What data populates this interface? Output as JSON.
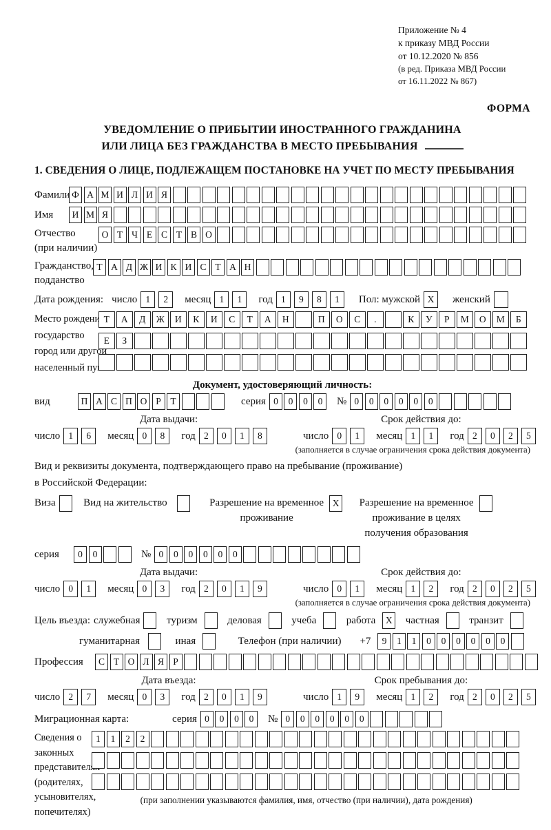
{
  "page": {
    "appendix_line1": "Приложение № 4",
    "appendix_line2": "к приказу МВД России",
    "appendix_line3": "от 10.12.2020 № 856",
    "appendix_line4": "(в ред. Приказа МВД России",
    "appendix_line5": "от 16.11.2022 № 867)",
    "form_word": "ФОРМА",
    "title_line1": "УВЕДОМЛЕНИЕ О ПРИБЫТИИ ИНОСТРАННОГО ГРАЖДАНИНА",
    "title_line2": "ИЛИ ЛИЦА БЕЗ ГРАЖДАНСТВА В МЕСТО ПРЕБЫВАНИЯ",
    "section1_title": "1. СВЕДЕНИЯ О ЛИЦЕ, ПОДЛЕЖАЩЕМ ПОСТАНОВКЕ НА УЧЕТ ПО МЕСТУ ПРЕБЫВАНИЯ"
  },
  "labels": {
    "surname": "Фамилия",
    "firstname": "Имя",
    "patronymic1": "Отчество",
    "patronymic2": "(при наличии)",
    "citizenship1": "Гражданство,",
    "citizenship2": "подданство",
    "birthdate": "Дата рождения:",
    "day": "число",
    "month": "месяц",
    "year": "год",
    "sex_male": "Пол: мужской",
    "sex_female": "женский",
    "birthplace1": "Место рождения:",
    "birthplace2": "государство",
    "birthplace3": "город или другой",
    "birthplace4": "населенный пункт",
    "id_doc_header": "Документ, удостоверяющий личность:",
    "kind": "вид",
    "series": "серия",
    "number": "№",
    "issue_date": "Дата выдачи:",
    "valid_until": "Срок действия до:",
    "valid_note": "(заполняется в случае ограничения срока действия документа)",
    "right_doc1": "Вид и реквизиты документа, подтверждающего право на пребывание (проживание)",
    "right_doc2": "в Российской Федерации:",
    "visa": "Виза",
    "residence_permit": "Вид на жительство",
    "temp_permit1": "Разрешение на временное",
    "temp_permit2": "проживание",
    "edu_permit1": "Разрешение на временное",
    "edu_permit2": "проживание в целях",
    "edu_permit3": "получения образования",
    "purpose": "Цель въезда:",
    "opt_official": "служебная",
    "opt_tourism": "туризм",
    "opt_business": "деловая",
    "opt_study": "учеба",
    "opt_work": "работа",
    "opt_private": "частная",
    "opt_transit": "транзит",
    "opt_humanitarian": "гуманитарная",
    "opt_other": "иная",
    "phone": "Телефон (при наличии)",
    "phone_prefix": "+7",
    "profession": "Профессия",
    "entry_date": "Дата въезда:",
    "stay_until": "Срок пребывания до:",
    "migration_card": "Миграционная карта:",
    "reps1": "Сведения о",
    "reps2": "законных",
    "reps3": "представителях",
    "reps4": "(родителях,",
    "reps5": "усыновителях,",
    "reps6": "попечителях)",
    "reps_note": "(при заполнении указываются фамилия, имя, отчество (при наличии), дата рождения)"
  },
  "values": {
    "surname": {
      "chars": "ФАМИЛИЯ",
      "total": 31
    },
    "firstname": {
      "chars": "ИМЯ",
      "total": 31
    },
    "patronymic": {
      "chars": "ОТЧЕСТВО",
      "total": 29
    },
    "citizenship": {
      "chars": "ТАДЖИКИСТАН",
      "total": 29
    },
    "birth_day": {
      "chars": "12",
      "total": 2
    },
    "birth_month": {
      "chars": "11",
      "total": 2
    },
    "birth_year": {
      "chars": "1981",
      "total": 4
    },
    "sex_male": {
      "chars": "X",
      "total": 1
    },
    "sex_female": {
      "chars": "",
      "total": 1
    },
    "birthplace_r1": {
      "chars": "ТАДЖИКИСТАН ПОС. КУРМОМБ",
      "total": 24
    },
    "birthplace_r2": {
      "chars": "ЕЗ",
      "total": 24
    },
    "birthplace_r3": {
      "chars": "",
      "total": 24
    },
    "id_kind": {
      "chars": "ПАСПОРТ",
      "total": 10
    },
    "id_series": {
      "chars": "0000",
      "total": 4
    },
    "id_number": {
      "chars": "000000",
      "total": 11
    },
    "id_issue_day": {
      "chars": "16",
      "total": 2
    },
    "id_issue_month": {
      "chars": "08",
      "total": 2
    },
    "id_issue_year": {
      "chars": "2018",
      "total": 4
    },
    "id_valid_day": {
      "chars": "01",
      "total": 2
    },
    "id_valid_month": {
      "chars": "11",
      "total": 2
    },
    "id_valid_year": {
      "chars": "2025",
      "total": 4
    },
    "cb_visa": {
      "chars": "",
      "total": 1
    },
    "cb_residence": {
      "chars": "",
      "total": 1
    },
    "cb_temp_permit": {
      "chars": "X",
      "total": 1
    },
    "cb_edu_permit": {
      "chars": "",
      "total": 1
    },
    "permit_series": {
      "chars": "00",
      "total": 4
    },
    "permit_number": {
      "chars": "000000",
      "total": 14
    },
    "permit_issue_day": {
      "chars": "01",
      "total": 2
    },
    "permit_issue_month": {
      "chars": "03",
      "total": 2
    },
    "permit_issue_year": {
      "chars": "2019",
      "total": 4
    },
    "permit_valid_day": {
      "chars": "01",
      "total": 2
    },
    "permit_valid_month": {
      "chars": "12",
      "total": 2
    },
    "permit_valid_year": {
      "chars": "2025",
      "total": 4
    },
    "cb_official": {
      "chars": "",
      "total": 1
    },
    "cb_tourism": {
      "chars": "",
      "total": 1
    },
    "cb_business": {
      "chars": "",
      "total": 1
    },
    "cb_study": {
      "chars": "",
      "total": 1
    },
    "cb_work": {
      "chars": "X",
      "total": 1
    },
    "cb_private": {
      "chars": "",
      "total": 1
    },
    "cb_transit": {
      "chars": "",
      "total": 1
    },
    "cb_humanitarian": {
      "chars": "",
      "total": 1
    },
    "cb_other": {
      "chars": "",
      "total": 1
    },
    "phone": {
      "chars": "911000000",
      "total": 10
    },
    "profession": {
      "chars": "СТОЛЯР",
      "total": 30
    },
    "entry_day": {
      "chars": "27",
      "total": 2
    },
    "entry_month": {
      "chars": "03",
      "total": 2
    },
    "entry_year": {
      "chars": "2019",
      "total": 4
    },
    "stay_day": {
      "chars": "19",
      "total": 2
    },
    "stay_month": {
      "chars": "12",
      "total": 2
    },
    "stay_year": {
      "chars": "2025",
      "total": 4
    },
    "mig_series": {
      "chars": "0000",
      "total": 4
    },
    "mig_number": {
      "chars": "000000",
      "total": 11
    },
    "reps_r1": {
      "chars": "1122",
      "total": 29
    },
    "reps_r2": {
      "chars": "",
      "total": 29
    },
    "reps_r3": {
      "chars": "",
      "total": 29
    }
  }
}
